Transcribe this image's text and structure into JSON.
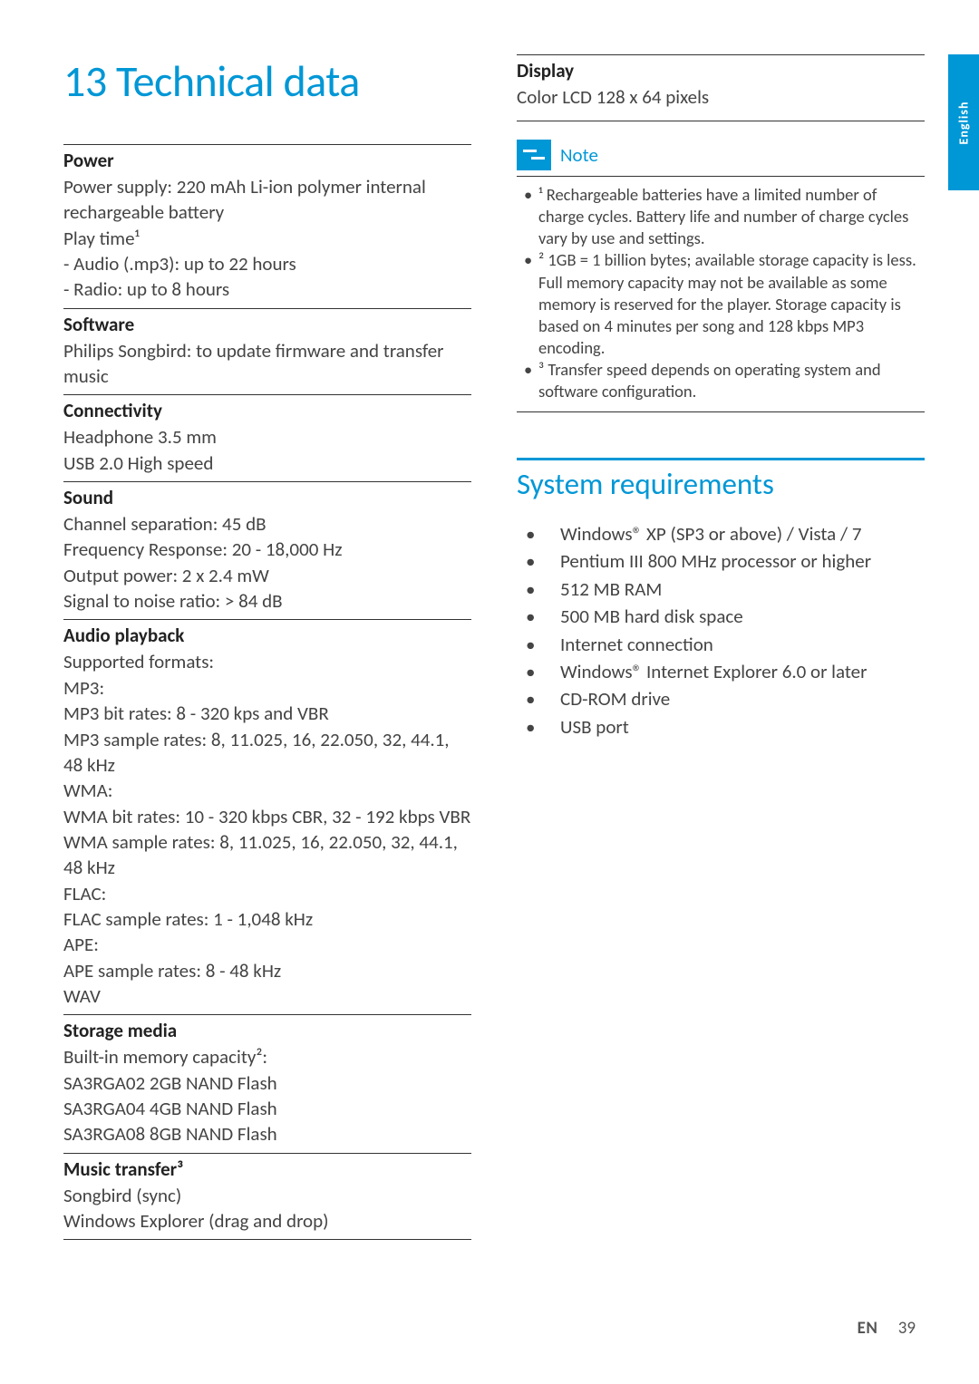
{
  "colors": {
    "accent": "#0097d6",
    "text": "#333333",
    "body_text": "#444444",
    "rule": "#333333",
    "background": "#ffffff"
  },
  "typography": {
    "family": "Gill Sans",
    "chapter_title_size": 48,
    "spec_heading_size": 21,
    "body_size": 21,
    "note_body_size": 18.5,
    "sysreq_title_size": 33,
    "tab_size": 14
  },
  "side_tab": "English",
  "chapter": {
    "number": "13",
    "title": "Technical data"
  },
  "left_specs": [
    {
      "heading": "Power",
      "lines": [
        "Power supply: 220 mAh Li-ion polymer internal rechargeable battery",
        "Play time¹",
        "- Audio (.mp3): up to 22 hours",
        "- Radio: up to 8 hours"
      ]
    },
    {
      "heading": "Software",
      "lines": [
        "Philips Songbird: to update firmware and transfer music"
      ]
    },
    {
      "heading": "Connectivity",
      "lines": [
        "Headphone 3.5 mm",
        "USB 2.0 High speed"
      ]
    },
    {
      "heading": "Sound",
      "lines": [
        "Channel separation: 45 dB",
        "Frequency Response: 20 - 18,000 Hz",
        "Output power: 2 x 2.4 mW",
        "Signal to noise ratio: > 84 dB"
      ]
    },
    {
      "heading": "Audio playback",
      "lines": [
        "Supported formats:",
        "MP3:",
        "MP3 bit rates: 8 - 320 kps and VBR",
        "MP3 sample rates: 8, 11.025, 16, 22.050, 32, 44.1, 48 kHz",
        "WMA:",
        "WMA bit rates: 10 - 320 kbps CBR, 32 - 192 kbps VBR",
        "WMA sample rates: 8, 11.025, 16, 22.050, 32, 44.1, 48 kHz",
        "FLAC:",
        "FLAC sample rates: 1 - 1,048 kHz",
        "APE:",
        "APE sample rates: 8 - 48 kHz",
        "WAV"
      ]
    },
    {
      "heading": "Storage media",
      "lines": [
        "Built-in memory capacity²:",
        "SA3RGA02 2GB NAND Flash",
        "SA3RGA04 4GB NAND Flash",
        "SA3RGA08 8GB NAND Flash"
      ]
    },
    {
      "heading": "Music transfer³",
      "lines": [
        "Songbird (sync)",
        "Windows Explorer (drag and drop)"
      ]
    }
  ],
  "right_display": {
    "heading": "Display",
    "lines": [
      "Color LCD 128 x 64 pixels"
    ]
  },
  "note": {
    "label": "Note",
    "items": [
      "¹ Rechargeable batteries have a limited number of charge cycles. Battery life and number of charge cycles vary by use and settings.",
      "² 1GB = 1 billion bytes; available storage capacity is less. Full memory capacity may not be available as some memory is reserved for the player. Storage capacity is based on 4 minutes per song and 128 kbps MP3 encoding.",
      "³ Transfer speed depends on operating system and software configuration."
    ]
  },
  "sysreq": {
    "title": "System requirements",
    "items": [
      "Windows® XP (SP3 or above) / Vista / 7",
      "Pentium III 800 MHz processor or higher",
      "512 MB RAM",
      "500 MB hard disk space",
      "Internet connection",
      "Windows® Internet Explorer 6.0 or later",
      "CD-ROM drive",
      "USB port"
    ]
  },
  "footer": {
    "lang": "EN",
    "page": "39"
  }
}
